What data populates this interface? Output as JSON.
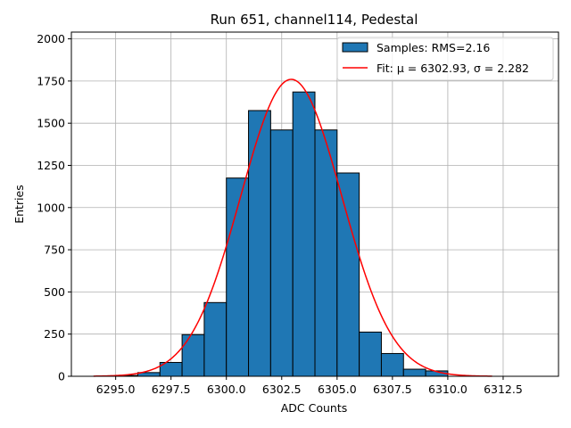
{
  "chart_data": {
    "type": "bar",
    "title": "Run 651, channel114, Pedestal",
    "xlabel": "ADC Counts",
    "ylabel": "Entries",
    "xlim": [
      6293.0,
      6315.0
    ],
    "ylim": [
      0,
      2040
    ],
    "grid": true,
    "legend_position": "top-right",
    "bar_color": "#1f77b4",
    "fit_color": "#ff0000",
    "x_ticks": [
      6295.0,
      6297.5,
      6300.0,
      6302.5,
      6305.0,
      6307.5,
      6310.0,
      6312.5
    ],
    "x_tick_labels": [
      "6295.0",
      "6297.5",
      "6300.0",
      "6302.5",
      "6305.0",
      "6307.5",
      "6310.0",
      "6312.5"
    ],
    "y_ticks": [
      0,
      250,
      500,
      750,
      1000,
      1250,
      1500,
      1750,
      2000
    ],
    "y_tick_labels": [
      "0",
      "250",
      "500",
      "750",
      "1000",
      "1250",
      "1500",
      "1750",
      "2000"
    ],
    "bins": [
      {
        "x0": 6295.0,
        "x1": 6296.0,
        "count": 5
      },
      {
        "x0": 6296.0,
        "x1": 6297.0,
        "count": 22
      },
      {
        "x0": 6297.0,
        "x1": 6298.0,
        "count": 82
      },
      {
        "x0": 6298.0,
        "x1": 6299.0,
        "count": 247
      },
      {
        "x0": 6299.0,
        "x1": 6300.0,
        "count": 437
      },
      {
        "x0": 6300.0,
        "x1": 6301.0,
        "count": 1175
      },
      {
        "x0": 6301.0,
        "x1": 6302.0,
        "count": 1575
      },
      {
        "x0": 6302.0,
        "x1": 6303.0,
        "count": 1460
      },
      {
        "x0": 6303.0,
        "x1": 6304.0,
        "count": 1685
      },
      {
        "x0": 6304.0,
        "x1": 6305.0,
        "count": 1460
      },
      {
        "x0": 6305.0,
        "x1": 6306.0,
        "count": 1205
      },
      {
        "x0": 6306.0,
        "x1": 6307.0,
        "count": 262
      },
      {
        "x0": 6307.0,
        "x1": 6308.0,
        "count": 135
      },
      {
        "x0": 6308.0,
        "x1": 6309.0,
        "count": 42
      },
      {
        "x0": 6309.0,
        "x1": 6310.0,
        "count": 32
      }
    ],
    "fit": {
      "mu": 6302.93,
      "sigma": 2.282,
      "amplitude": 1760,
      "x_range": [
        6294.0,
        6312.0
      ]
    },
    "legend": [
      {
        "label": "Samples: RMS=2.16",
        "kind": "patch"
      },
      {
        "label": "Fit: μ = 6302.93, σ = 2.282",
        "kind": "line"
      }
    ]
  }
}
